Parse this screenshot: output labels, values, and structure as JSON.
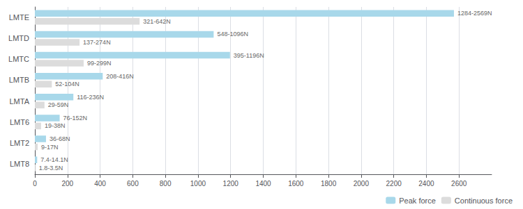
{
  "chart_data": {
    "type": "bar",
    "orientation": "horizontal",
    "categories": [
      "LMTE",
      "LMTD",
      "LMTC",
      "LMTB",
      "LMTA",
      "LMT6",
      "LMT2",
      "LMT8"
    ],
    "series": [
      {
        "name": "Peak force",
        "color": "#A8D8EA",
        "values": [
          2569,
          1096,
          1196,
          416,
          236,
          152,
          68,
          14.1
        ],
        "value_labels": [
          "1284-2569N",
          "548-1096N",
          "395-1196N",
          "208-416N",
          "116-236N",
          "76-152N",
          "36-68N",
          "7.4-14.1N"
        ]
      },
      {
        "name": "Continuous force",
        "color": "#DCDCDC",
        "values": [
          642,
          274,
          299,
          104,
          59,
          38,
          17,
          3.5
        ],
        "value_labels": [
          "321-642N",
          "137-274N",
          "99-299N",
          "52-104N",
          "29-59N",
          "19-38N",
          "9-17N",
          "1.8-3.5N"
        ]
      }
    ],
    "xlim": [
      0,
      2800
    ],
    "xticks": [
      0,
      200,
      400,
      600,
      800,
      1000,
      1200,
      1400,
      1600,
      1800,
      2000,
      2200,
      2400,
      2600
    ],
    "grid": true,
    "legend": "lower right",
    "data_labels": true
  }
}
